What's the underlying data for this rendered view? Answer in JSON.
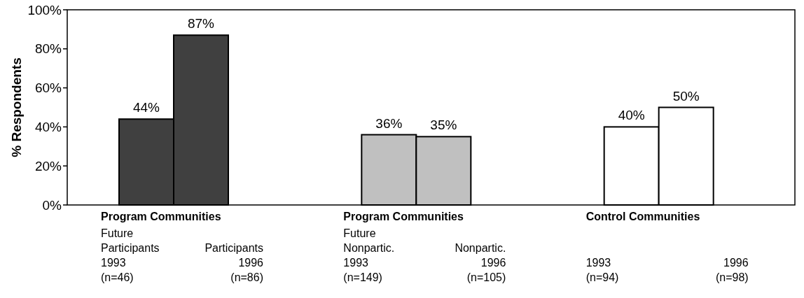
{
  "chart_data": {
    "type": "bar",
    "ylabel": "% Respondents",
    "categories": [
      "Future\nParticipants\n1993\n(n=46)",
      "Participants\n1996\n(n=86)",
      "Future\nNonpartic.\n1993\n(n=149)",
      "Nonpartic.\n1996\n(n=105)",
      "1993\n(n=94)",
      "1996\n(n=98)"
    ],
    "values": [
      44,
      87,
      36,
      35,
      40,
      50
    ],
    "colors": [
      "#404040",
      "#404040",
      "#c0c0c0",
      "#c0c0c0",
      "#ffffff",
      "#ffffff"
    ],
    "value_labels": [
      "44%",
      "87%",
      "36%",
      "35%",
      "40%",
      "50%"
    ],
    "annotations": [
      "Program Communities",
      "Program Communities",
      "Control Communities"
    ],
    "ylim": [
      0,
      100
    ],
    "yticks": [
      {
        "value": 0,
        "label": "0%"
      },
      {
        "value": 20,
        "label": "20%"
      },
      {
        "value": 40,
        "label": "40%"
      },
      {
        "value": 60,
        "label": "60%"
      },
      {
        "value": 80,
        "label": "80%"
      },
      {
        "value": 100,
        "label": "100%"
      }
    ],
    "grid": false
  }
}
